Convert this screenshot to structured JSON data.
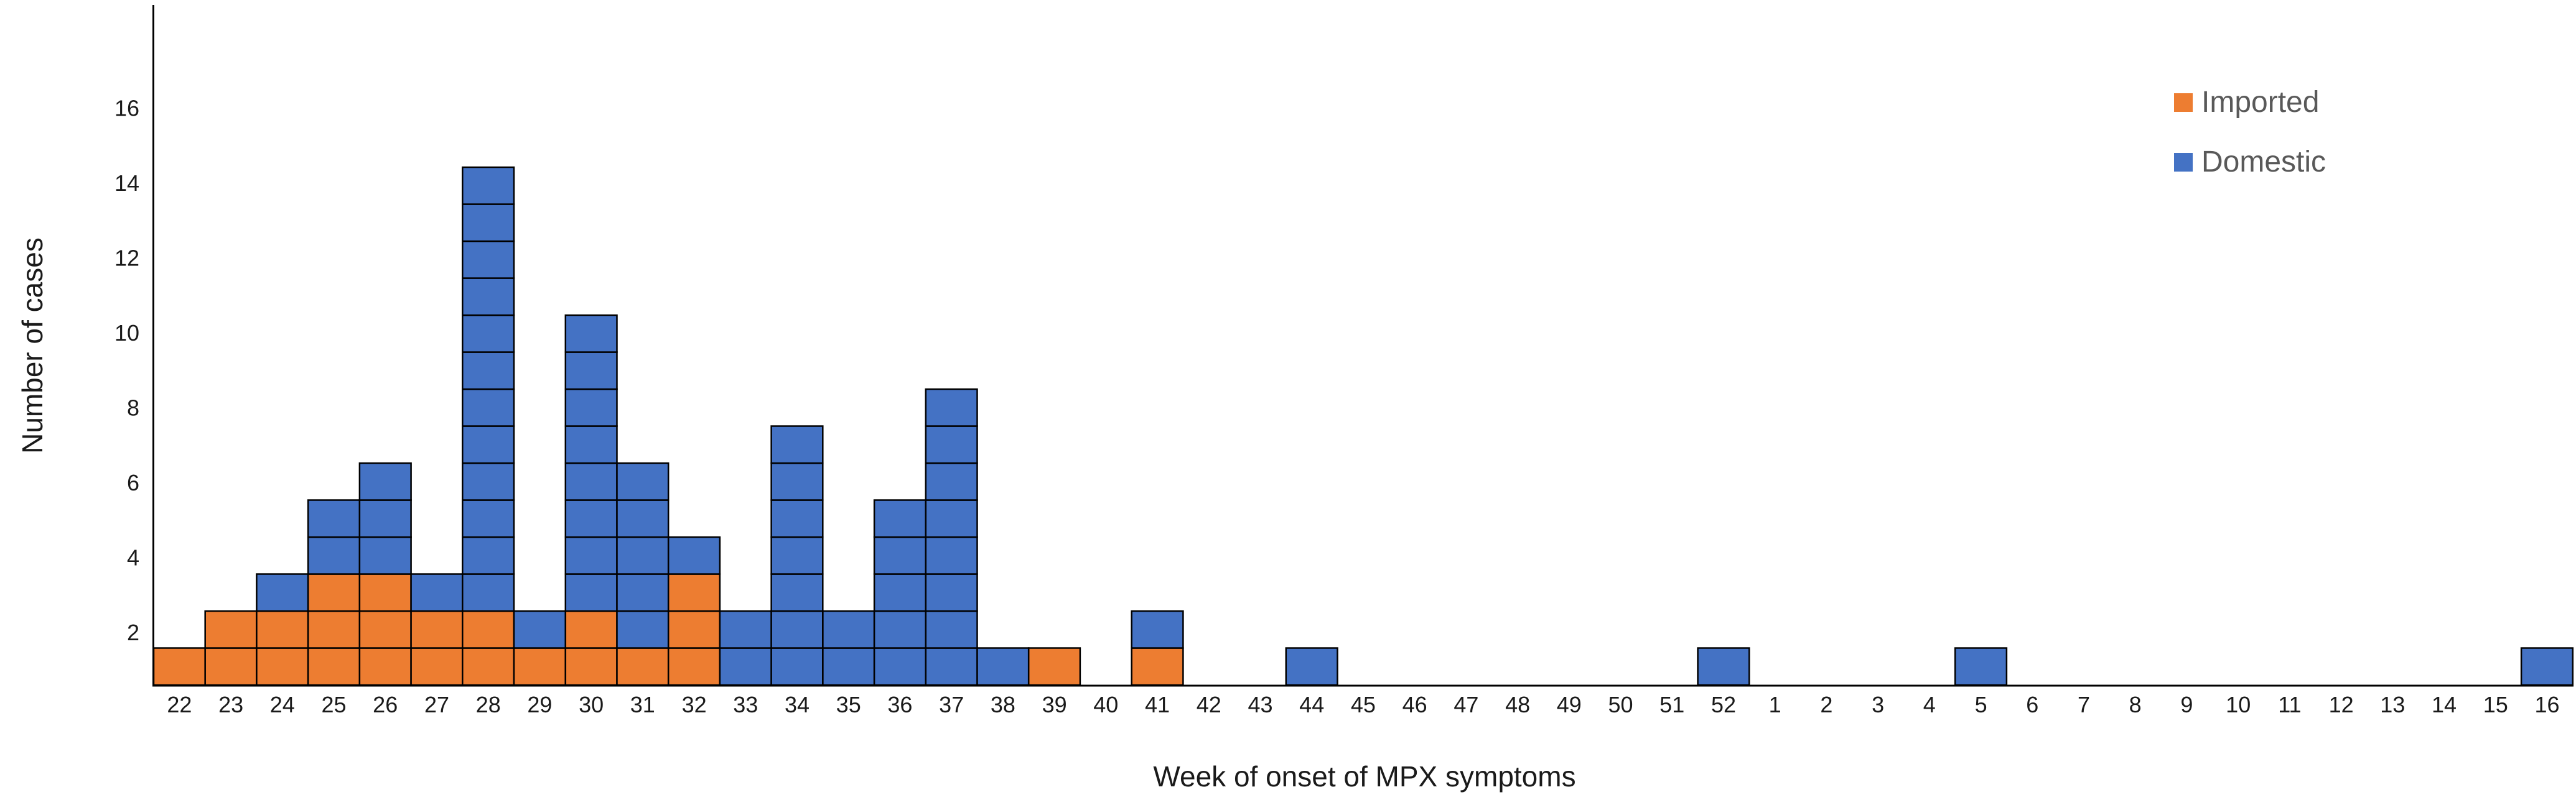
{
  "chart_data": {
    "type": "bar",
    "stacked": true,
    "unit_block_style": true,
    "title": "",
    "xlabel": "Week of onset of MPX symptoms",
    "ylabel": "Number of cases",
    "categories": [
      "22",
      "23",
      "24",
      "25",
      "26",
      "27",
      "28",
      "29",
      "30",
      "31",
      "32",
      "33",
      "34",
      "35",
      "36",
      "37",
      "38",
      "39",
      "40",
      "41",
      "42",
      "43",
      "44",
      "45",
      "46",
      "47",
      "48",
      "49",
      "50",
      "51",
      "52",
      "1",
      "2",
      "3",
      "4",
      "5",
      "6",
      "7",
      "8",
      "9",
      "10",
      "11",
      "12",
      "13",
      "14",
      "15",
      "16"
    ],
    "series": [
      {
        "name": "Imported",
        "color": "#ED7D31",
        "values": [
          1,
          2,
          2,
          3,
          3,
          2,
          2,
          1,
          2,
          1,
          3,
          0,
          0,
          0,
          0,
          0,
          0,
          1,
          0,
          1,
          0,
          0,
          0,
          0,
          0,
          0,
          0,
          0,
          0,
          0,
          0,
          0,
          0,
          0,
          0,
          0,
          0,
          0,
          0,
          0,
          0,
          0,
          0,
          0,
          0,
          0,
          0
        ]
      },
      {
        "name": "Domestic",
        "color": "#4472C4",
        "values": [
          0,
          0,
          1,
          2,
          3,
          1,
          12,
          1,
          8,
          5,
          1,
          2,
          7,
          2,
          5,
          8,
          1,
          0,
          0,
          1,
          0,
          0,
          1,
          0,
          0,
          0,
          0,
          0,
          0,
          0,
          1,
          0,
          0,
          0,
          0,
          1,
          0,
          0,
          0,
          0,
          0,
          0,
          0,
          0,
          0,
          0,
          1
        ]
      }
    ],
    "yticks": [
      2,
      4,
      6,
      8,
      10,
      12,
      14,
      16
    ],
    "ylim": [
      0,
      18
    ],
    "grid": false,
    "legend_position": "top-right",
    "legend_text_color": "#595959",
    "block_border_color": "#000000",
    "axis_color": "#000000",
    "tick_label_color": "#1a1a1a"
  }
}
